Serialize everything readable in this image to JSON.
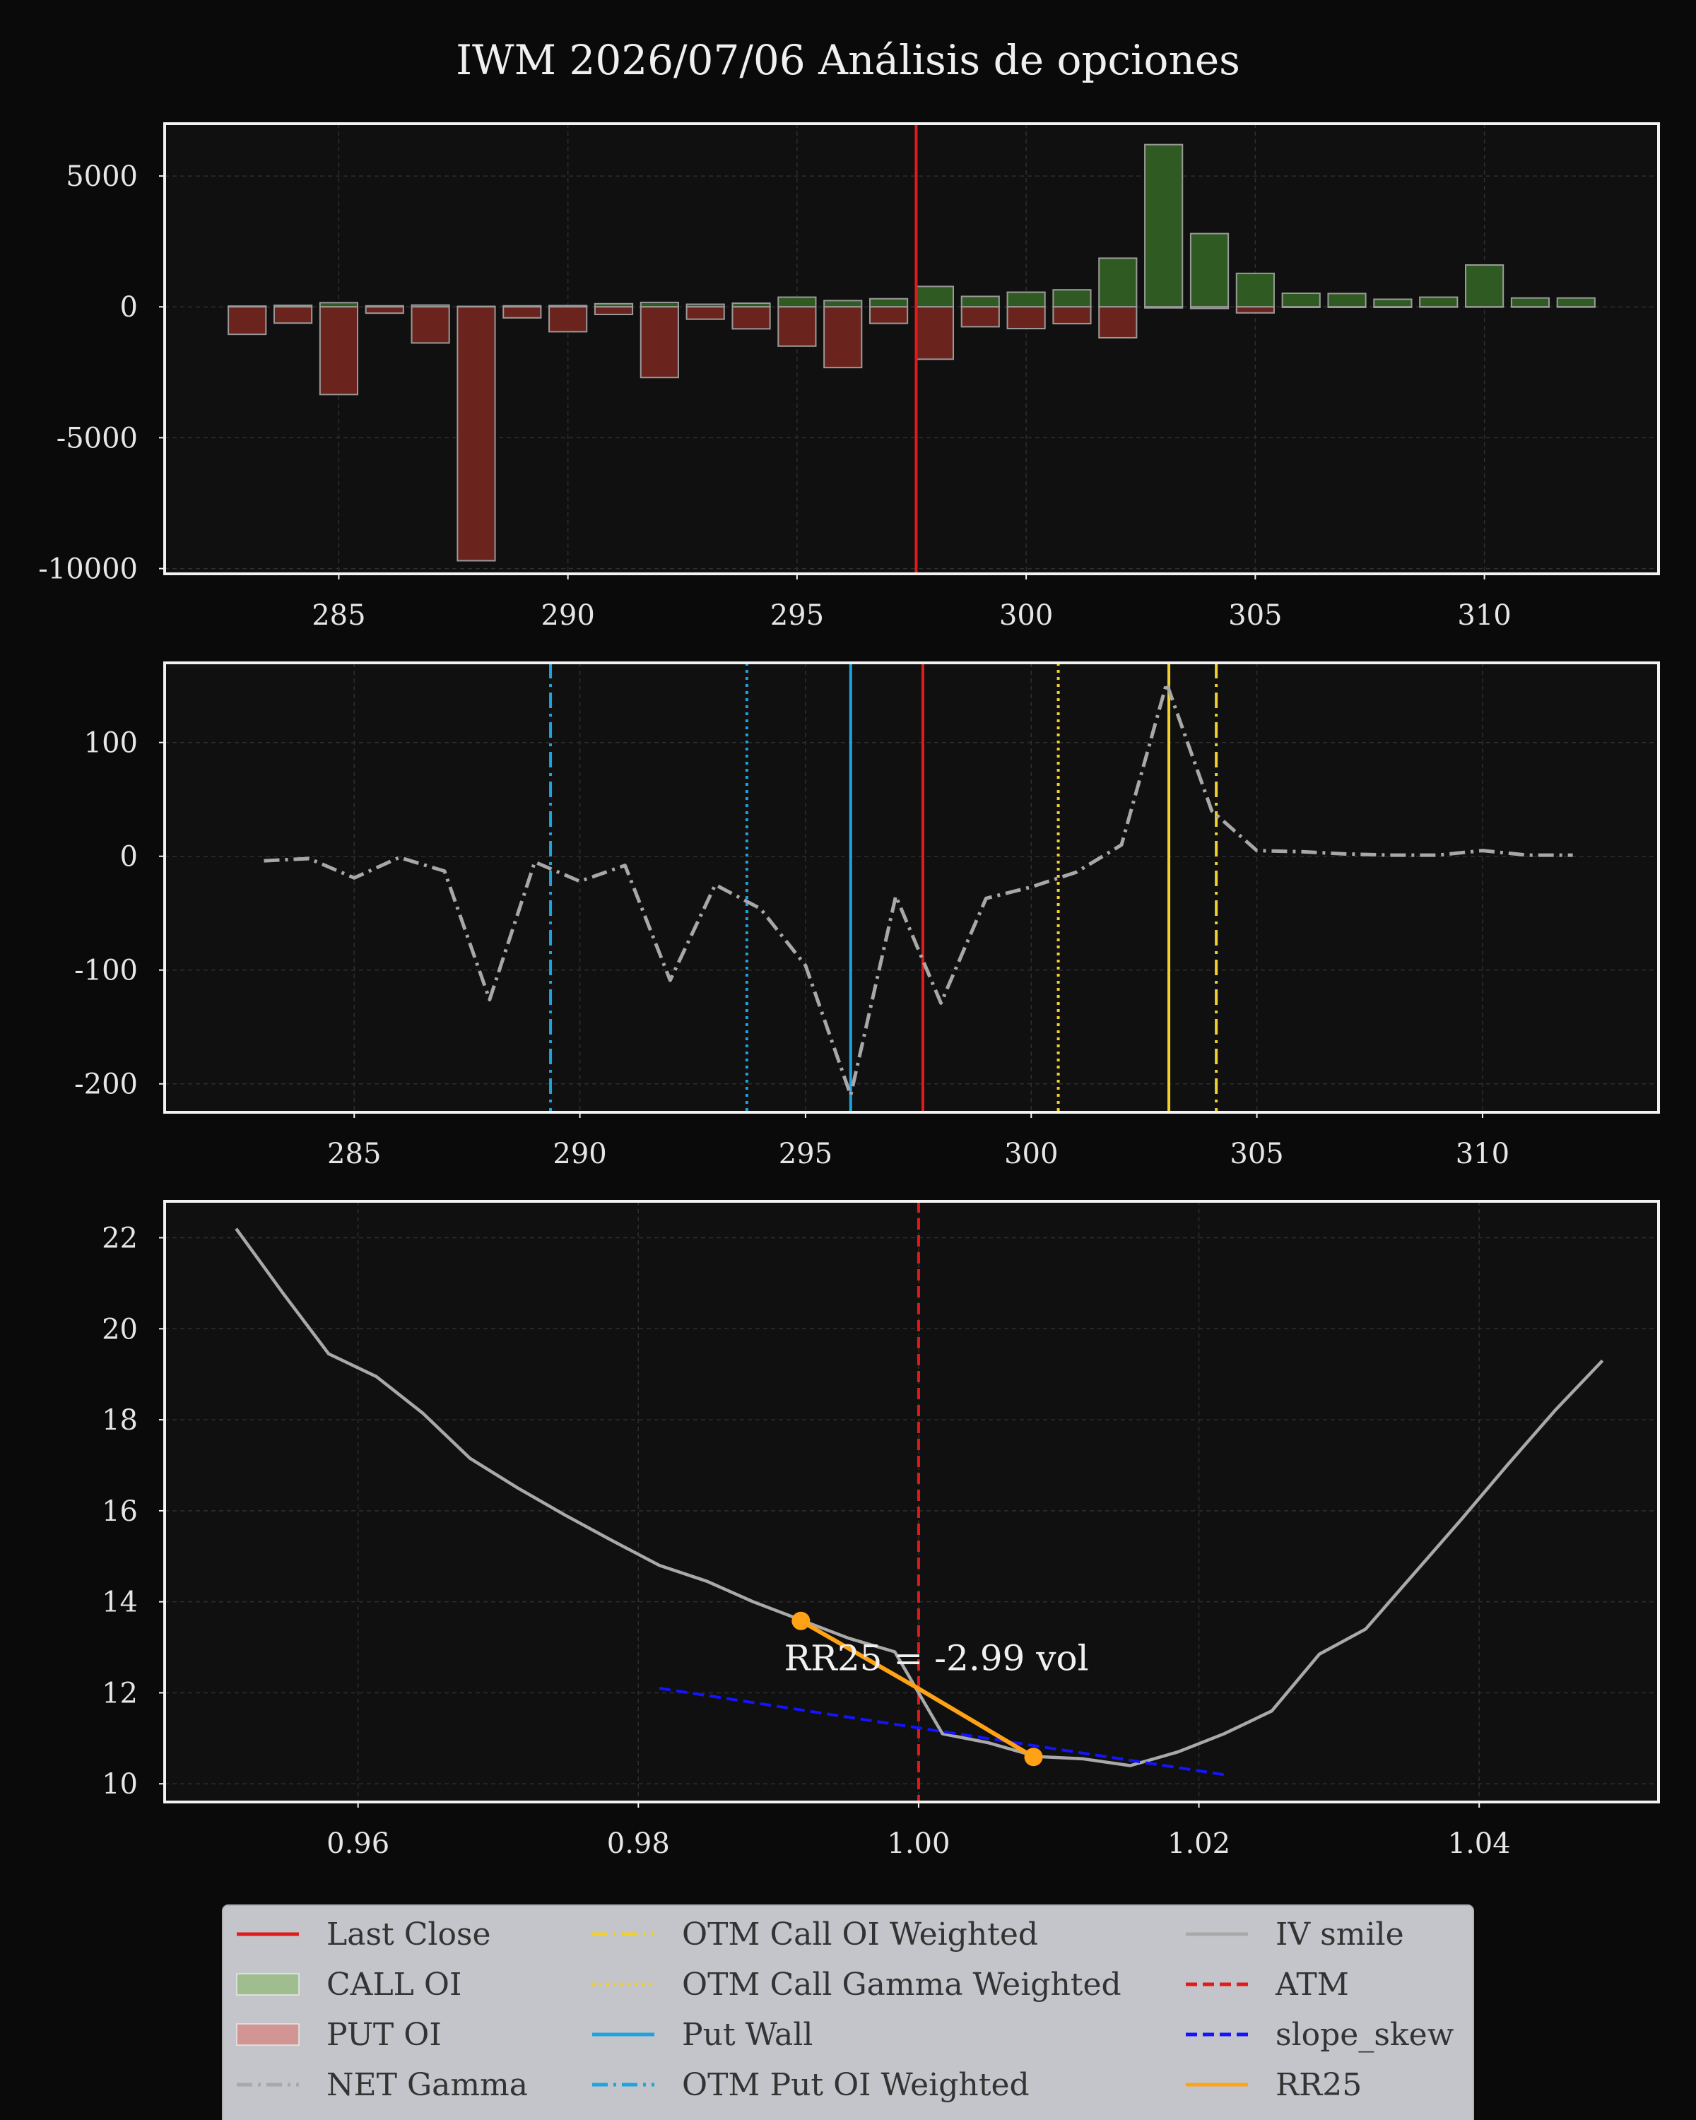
{
  "title": "IWM 2026/07/06 Análisis de opciones",
  "colors": {
    "background": "#0a0a0a",
    "axes_bg": "#101010",
    "frame": "#f2f2f2",
    "grid": "#2e2e2e",
    "last_close": "#e11b1b",
    "call_fill": "#2f5a22",
    "put_fill": "#6b241d",
    "bar_edge": "#9a9a9a",
    "net_gamma": "#a8a8a8",
    "yellow": "#f2cf2c",
    "blue": "#1ea3e0",
    "iv_smile": "#a9a9a9",
    "atm": "#e11b1b",
    "slope_skew": "#1414ff",
    "rr25": "#ffa215",
    "legend_bg": "#c3c5ca"
  },
  "chart_data": [
    {
      "type": "bar",
      "name": "open-interest",
      "xlim": [
        281.2,
        313.8
      ],
      "ylim": [
        -10200,
        7000
      ],
      "xticks": [
        285,
        290,
        295,
        300,
        305,
        310
      ],
      "yticks": [
        5000,
        0,
        -5000,
        -10000
      ],
      "grid": true,
      "strikes": [
        283,
        284,
        285,
        286,
        287,
        288,
        289,
        290,
        291,
        292,
        293,
        294,
        295,
        296,
        297,
        298,
        299,
        300,
        301,
        302,
        303,
        304,
        305,
        306,
        307,
        308,
        309,
        310,
        311,
        312
      ],
      "series": [
        {
          "name": "CALL OI",
          "values": [
            30,
            60,
            160,
            40,
            70,
            20,
            40,
            50,
            120,
            170,
            100,
            140,
            370,
            240,
            310,
            780,
            400,
            560,
            650,
            1860,
            6200,
            2800,
            1280,
            520,
            510,
            290,
            370,
            1600,
            340,
            340
          ]
        },
        {
          "name": "PUT OI",
          "values": [
            -1050,
            -620,
            -3350,
            -240,
            -1380,
            -9700,
            -420,
            -950,
            -290,
            -2700,
            -470,
            -840,
            -1500,
            -2320,
            -630,
            -2000,
            -760,
            -830,
            -640,
            -1180,
            -40,
            -60,
            -230,
            -20,
            -20,
            -20,
            -10,
            -10,
            -10,
            -10
          ]
        }
      ],
      "vlines": [
        {
          "name": "Last Close",
          "x": 297.6
        }
      ]
    },
    {
      "type": "line",
      "name": "net-gamma",
      "xlim": [
        280.8,
        313.9
      ],
      "ylim": [
        -225,
        170
      ],
      "xticks": [
        285,
        290,
        295,
        300,
        305,
        310
      ],
      "yticks": [
        100,
        0,
        -100,
        -200
      ],
      "grid": true,
      "series": [
        {
          "name": "NET Gamma",
          "x": [
            283,
            284,
            285,
            286,
            287,
            288,
            289,
            290,
            291,
            292,
            293,
            294,
            295,
            296,
            297,
            298,
            299,
            300,
            301,
            302,
            303,
            304,
            305,
            306,
            307,
            308,
            309,
            310,
            311,
            312
          ],
          "y": [
            -4,
            -2,
            -19,
            -1,
            -13,
            -126,
            -5,
            -22,
            -8,
            -109,
            -25,
            -46,
            -96,
            -210,
            -35,
            -129,
            -37,
            -27,
            -14,
            10,
            152,
            40,
            5,
            4,
            2,
            1,
            1,
            5,
            1,
            1
          ]
        }
      ],
      "vlines": [
        {
          "name": "OTM Put OI Weighted",
          "x": 289.35,
          "style": "dashdot",
          "color": "blue"
        },
        {
          "name": "OTM Put Gamma Weighted",
          "x": 293.7,
          "style": "dotted",
          "color": "blue"
        },
        {
          "name": "Put Wall",
          "x": 296.0,
          "style": "solid",
          "color": "blue"
        },
        {
          "name": "Last Close",
          "x": 297.6,
          "style": "solid",
          "color": "red"
        },
        {
          "name": "OTM Call Gamma Weighted",
          "x": 300.6,
          "style": "dotted",
          "color": "yellow"
        },
        {
          "name": "Call Wall",
          "x": 303.05,
          "style": "solid",
          "color": "yellow"
        },
        {
          "name": "OTM Call OI Weighted",
          "x": 304.1,
          "style": "dashdot",
          "color": "yellow"
        }
      ]
    },
    {
      "type": "line",
      "name": "iv-smile",
      "xlim": [
        0.9462,
        1.0528
      ],
      "ylim": [
        9.6,
        22.8
      ],
      "xticks": [
        0.96,
        0.98,
        1.0,
        1.02,
        1.04
      ],
      "xtick_labels": [
        "0.96",
        "0.98",
        "1.00",
        "1.02",
        "1.04"
      ],
      "yticks": [
        22,
        20,
        18,
        16,
        14,
        12,
        10
      ],
      "grid": true,
      "series": [
        {
          "name": "IV smile",
          "x": [
            0.9513,
            0.9546,
            0.9579,
            0.9613,
            0.9646,
            0.968,
            0.9714,
            0.9748,
            0.9781,
            0.9815,
            0.9849,
            0.9882,
            0.9916,
            0.995,
            0.9983,
            1.0,
            1.0017,
            1.005,
            1.0084,
            1.0117,
            1.0151,
            1.0185,
            1.0218,
            1.0252,
            1.0286,
            1.0319,
            1.0353,
            1.0387,
            1.042,
            1.0454,
            1.0488
          ],
          "y": [
            22.2,
            20.8,
            19.45,
            18.95,
            18.15,
            17.15,
            16.5,
            15.9,
            15.35,
            14.8,
            14.45,
            14.0,
            13.6,
            13.2,
            12.9,
            12.0,
            11.1,
            10.9,
            10.6,
            10.55,
            10.4,
            10.7,
            11.1,
            11.6,
            12.85,
            13.4,
            14.6,
            15.8,
            17.0,
            18.2,
            19.3
          ]
        },
        {
          "name": "slope_skew",
          "x": [
            0.9815,
            1.0218
          ],
          "y": [
            12.1,
            10.2
          ]
        },
        {
          "name": "RR25",
          "x": [
            0.9916,
            1.0,
            1.0082
          ],
          "y": [
            13.58,
            12.09,
            10.59
          ]
        }
      ],
      "vlines": [
        {
          "name": "ATM",
          "x": 1.0,
          "style": "dashed",
          "color": "red"
        }
      ],
      "annotation": {
        "text": "RR25 = -2.99 vol",
        "x": 0.9904,
        "y": 12.5
      }
    }
  ],
  "legend": {
    "columns": [
      [
        {
          "label": "Last Close",
          "kind": "line",
          "color": "last_close",
          "dash": "solid"
        },
        {
          "label": "CALL OI",
          "kind": "patch",
          "color": "#9fbd8f"
        },
        {
          "label": "PUT OI",
          "kind": "patch",
          "color": "#d19593"
        },
        {
          "label": "NET Gamma",
          "kind": "line",
          "color": "net_gamma",
          "dash": "dashdot"
        }
      ],
      [
        {
          "label": "OTM Call OI Weighted",
          "kind": "line",
          "color": "yellow",
          "dash": "dashdot"
        },
        {
          "label": "OTM Call Gamma Weighted",
          "kind": "line",
          "color": "yellow",
          "dash": "dotted"
        },
        {
          "label": "Put Wall",
          "kind": "line",
          "color": "blue",
          "dash": "solid"
        },
        {
          "label": "OTM Put OI Weighted",
          "kind": "line",
          "color": "blue",
          "dash": "dashdot"
        }
      ],
      [
        {
          "label": "IV smile",
          "kind": "line",
          "color": "iv_smile",
          "dash": "solid"
        },
        {
          "label": "ATM",
          "kind": "line",
          "color": "atm",
          "dash": "dashed"
        },
        {
          "label": "slope_skew",
          "kind": "line",
          "color": "slope_skew",
          "dash": "dashed"
        },
        {
          "label": "RR25",
          "kind": "line",
          "color": "rr25",
          "dash": "solid"
        }
      ]
    ]
  }
}
